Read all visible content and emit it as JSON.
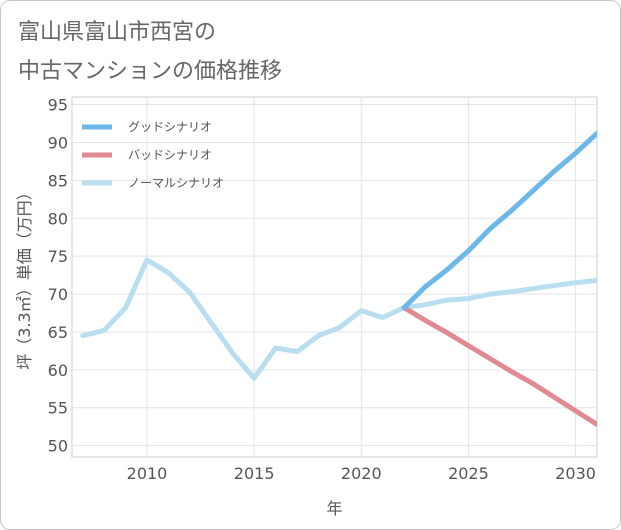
{
  "title": {
    "line1": "富山県富山市西宮の",
    "line2": "中古マンションの価格推移"
  },
  "chart_data": {
    "type": "line",
    "xlabel": "年",
    "ylabel": "坪（3.3㎡）単価（万円）",
    "xlim": [
      2006.5,
      2031
    ],
    "ylim": [
      48.5,
      96
    ],
    "xticks": [
      2010,
      2015,
      2020,
      2025,
      2030
    ],
    "yticks": [
      50,
      55,
      60,
      65,
      70,
      75,
      80,
      85,
      90,
      95
    ],
    "grid": true,
    "legend_position": "top-left",
    "series": [
      {
        "name": "グッドシナリオ",
        "color": "#6cb8ea",
        "x": [
          2022,
          2023,
          2024,
          2025,
          2026,
          2027,
          2028,
          2029,
          2030,
          2031
        ],
        "y": [
          68.2,
          71.0,
          73.2,
          75.7,
          78.6,
          81.0,
          83.6,
          86.2,
          88.6,
          91.2
        ]
      },
      {
        "name": "バッドシナリオ",
        "color": "#e08a93",
        "x": [
          2022,
          2023,
          2024,
          2025,
          2026,
          2027,
          2028,
          2029,
          2030,
          2031
        ],
        "y": [
          68.2,
          66.5,
          64.9,
          63.2,
          61.5,
          59.8,
          58.2,
          56.4,
          54.6,
          52.8
        ]
      },
      {
        "name": "ノーマルシナリオ",
        "color": "#b9deef",
        "x": [
          2007,
          2008,
          2009,
          2010,
          2011,
          2012,
          2013,
          2014,
          2015,
          2016,
          2017,
          2018,
          2019,
          2020,
          2021,
          2022,
          2023,
          2024,
          2025,
          2026,
          2027,
          2028,
          2029,
          2030,
          2031
        ],
        "y": [
          64.5,
          65.2,
          68.2,
          74.5,
          72.8,
          70.2,
          66.2,
          62.2,
          58.9,
          62.9,
          62.4,
          64.5,
          65.6,
          67.8,
          66.9,
          68.2,
          68.6,
          69.2,
          69.4,
          70.0,
          70.3,
          70.7,
          71.1,
          71.5,
          71.8
        ]
      }
    ]
  }
}
